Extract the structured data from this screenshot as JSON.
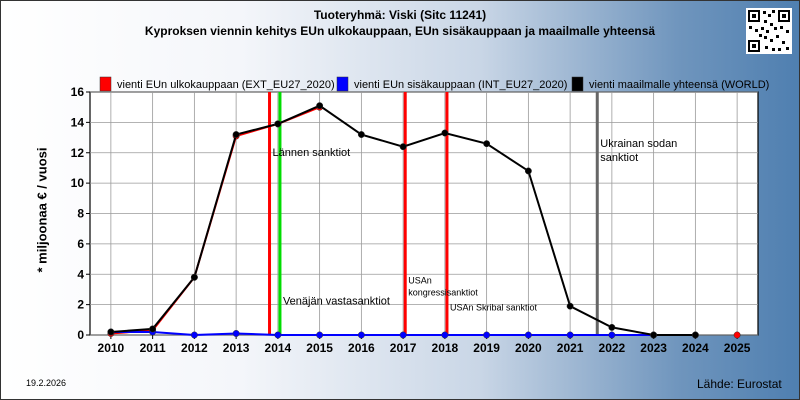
{
  "title_line1": "Tuoteryhmä: Viski (Sitc 11241)",
  "title_line2": "Kyproksen viennin kehitys EUn ulkokauppaan, EUn sisäkauppaan ja maailmalle yhteensä",
  "date_stamp": "19.2.2026",
  "source": "Lähde: Eurostat",
  "chart_data": {
    "type": "line",
    "ylabel": "* miljoonaa € / vuosi",
    "ylim": [
      0,
      16
    ],
    "yticks": [
      0,
      2,
      4,
      6,
      8,
      10,
      12,
      14,
      16
    ],
    "grid": true,
    "legend_position": "top",
    "x": [
      2010,
      2011,
      2012,
      2013,
      2014,
      2015,
      2016,
      2017,
      2018,
      2019,
      2020,
      2021,
      2022,
      2023,
      2024,
      2025
    ],
    "series": [
      {
        "name": "vienti EUn ulkokauppaan (EXT_EU27_2020)",
        "color": "#ff0000",
        "values": [
          0.1,
          0.3,
          3.8,
          13.1,
          13.9,
          15.0,
          null,
          null,
          null,
          null,
          null,
          null,
          null,
          null,
          null,
          0.0
        ]
      },
      {
        "name": "vienti EUn sisäkauppaan (INT_EU27_2020)",
        "color": "#0000ff",
        "values": [
          0.2,
          0.2,
          0.0,
          0.1,
          0.0,
          0.0,
          0.0,
          0.0,
          0.0,
          0.0,
          0.0,
          0.0,
          0.0,
          0.0,
          0.0,
          null
        ]
      },
      {
        "name": "vienti maailmalle yhteensä (WORLD)",
        "color": "#000000",
        "values": [
          0.2,
          0.4,
          3.8,
          13.2,
          13.9,
          15.1,
          13.2,
          12.4,
          13.3,
          12.6,
          10.8,
          1.9,
          0.5,
          0.0,
          0.0,
          null
        ]
      }
    ],
    "annotations": [
      {
        "x": 2013.8,
        "color": "#ff0000",
        "label": "Lännen sanktiot",
        "label_y": 11.8
      },
      {
        "x": 2014.05,
        "color": "#00dd00",
        "label": "Venäjän vastasanktiot",
        "label_y": 2.0
      },
      {
        "x": 2017.05,
        "color": "#ff0000",
        "label": "USAn kongressisanktiot",
        "label_y": 3.4
      },
      {
        "x": 2018.05,
        "color": "#ff0000",
        "label": "USAn Skribal sanktiot",
        "label_y": 1.6
      },
      {
        "x": 2021.65,
        "color": "#666666",
        "label": "Ukrainan sodan sanktiot",
        "label_y": 12.0
      }
    ]
  }
}
